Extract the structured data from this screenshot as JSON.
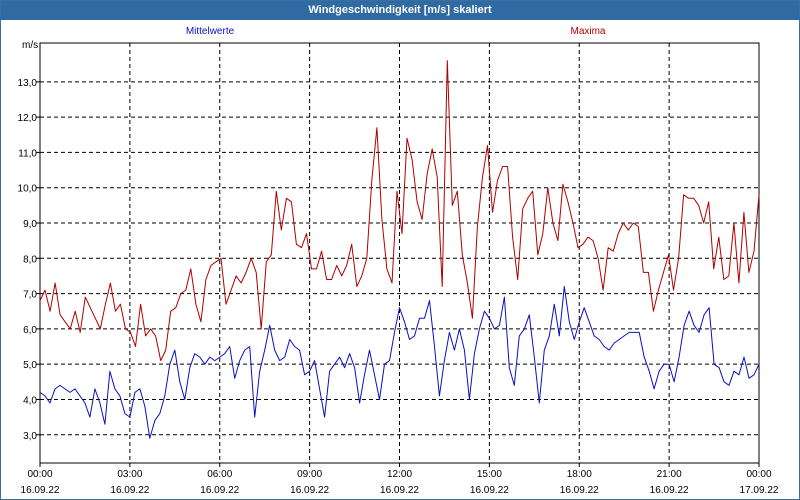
{
  "window": {
    "title": "Windgeschwindigkeit [m/s] skaliert"
  },
  "chart_data": {
    "type": "line",
    "title": "Windgeschwindigkeit [m/s] skaliert",
    "ylabel": "m/s",
    "ylim": [
      2.2,
      14.1
    ],
    "y_ticks": [
      "3,0",
      "4,0",
      "5,0",
      "6,0",
      "7,0",
      "8,0",
      "9,0",
      "10,0",
      "11,0",
      "12,0",
      "13,0"
    ],
    "y_tick_values": [
      3,
      4,
      5,
      6,
      7,
      8,
      9,
      10,
      11,
      12,
      13
    ],
    "xlim_hours": [
      0,
      24
    ],
    "x_ticks": [
      {
        "time": "00:00",
        "date": "16.09.22"
      },
      {
        "time": "03:00",
        "date": "16.09.22"
      },
      {
        "time": "06:00",
        "date": "16.09.22"
      },
      {
        "time": "09:00",
        "date": "16.09.22"
      },
      {
        "time": "12:00",
        "date": "16.09.22"
      },
      {
        "time": "15:00",
        "date": "16.09.22"
      },
      {
        "time": "18:00",
        "date": "16.09.22"
      },
      {
        "time": "21:00",
        "date": "16.09.22"
      },
      {
        "time": "00:00",
        "date": "17.09.22"
      }
    ],
    "grid": true,
    "colors": {
      "mean": "#0a10c0",
      "max": "#b00000"
    },
    "series": [
      {
        "name": "Mittelwerte",
        "color": "#0a10c0",
        "values": [
          4.2,
          4.1,
          3.9,
          4.3,
          4.4,
          4.3,
          4.2,
          4.3,
          4.1,
          3.9,
          3.5,
          4.3,
          3.9,
          3.3,
          4.8,
          4.3,
          4.1,
          3.6,
          3.5,
          4.2,
          4.3,
          3.8,
          2.9,
          3.4,
          3.6,
          4.1,
          5.0,
          5.4,
          4.5,
          4.0,
          4.9,
          5.3,
          5.2,
          5.0,
          5.2,
          5.1,
          5.2,
          5.3,
          5.5,
          4.6,
          5.1,
          5.4,
          5.5,
          3.5,
          4.8,
          5.4,
          6.1,
          5.4,
          5.1,
          5.2,
          5.7,
          5.5,
          5.4,
          4.7,
          4.8,
          5.1,
          4.3,
          3.5,
          4.8,
          5.0,
          5.2,
          4.9,
          5.3,
          4.9,
          3.9,
          4.7,
          5.4,
          4.7,
          4.0,
          5.0,
          5.1,
          5.9,
          6.6,
          6.2,
          5.7,
          5.8,
          6.3,
          6.3,
          6.8,
          5.5,
          4.1,
          5.1,
          5.9,
          5.4,
          6.0,
          5.4,
          4.0,
          5.3,
          6.0,
          6.5,
          6.3,
          6.0,
          6.1,
          6.9,
          4.9,
          4.4,
          5.8,
          6.0,
          6.4,
          5.2,
          3.9,
          5.4,
          5.8,
          6.7,
          5.8,
          7.2,
          6.2,
          5.7,
          6.2,
          6.6,
          6.2,
          5.8,
          5.7,
          5.5,
          5.4,
          5.6,
          5.7,
          5.8,
          5.9,
          5.9,
          5.9,
          5.2,
          4.8,
          4.3,
          4.8,
          5.0,
          5.0,
          4.5,
          5.2,
          6.1,
          6.5,
          6.1,
          5.9,
          6.4,
          6.6,
          5.0,
          4.9,
          4.5,
          4.4,
          4.8,
          4.7,
          5.2,
          4.6,
          4.7,
          5.0
        ]
      },
      {
        "name": "Maxima",
        "color": "#b00000",
        "values": [
          6.8,
          7.1,
          6.5,
          7.3,
          6.4,
          6.2,
          6.0,
          6.5,
          5.9,
          6.9,
          6.6,
          6.3,
          6.0,
          6.7,
          7.3,
          6.5,
          6.7,
          6.0,
          5.9,
          5.5,
          6.7,
          5.8,
          6.0,
          5.8,
          5.1,
          5.4,
          6.5,
          6.6,
          7.0,
          7.1,
          7.7,
          6.7,
          6.2,
          7.4,
          7.8,
          7.9,
          8.0,
          6.7,
          7.1,
          7.5,
          7.3,
          7.6,
          8.0,
          7.6,
          6.0,
          7.9,
          8.1,
          9.9,
          8.8,
          9.7,
          9.6,
          8.4,
          8.3,
          8.7,
          7.7,
          7.7,
          8.2,
          7.4,
          7.4,
          7.8,
          7.5,
          7.8,
          8.4,
          7.2,
          7.5,
          8.0,
          10.2,
          11.7,
          9.1,
          7.7,
          7.3,
          9.9,
          8.7,
          11.4,
          10.8,
          9.6,
          9.1,
          10.4,
          11.1,
          10.3,
          7.2,
          13.6,
          9.5,
          9.9,
          8.1,
          7.3,
          6.3,
          8.9,
          10.3,
          11.2,
          9.3,
          10.2,
          10.6,
          10.6,
          8.6,
          7.4,
          9.4,
          9.7,
          9.9,
          8.1,
          8.7,
          10.0,
          9.0,
          8.5,
          10.1,
          9.6,
          9.0,
          8.3,
          8.4,
          8.6,
          8.5,
          8.0,
          7.1,
          8.3,
          8.2,
          8.7,
          9.0,
          8.8,
          9.0,
          8.9,
          7.6,
          7.6,
          6.5,
          7.1,
          7.6,
          8.1,
          7.1,
          8.0,
          9.8,
          9.7,
          9.7,
          9.5,
          9.0,
          9.6,
          7.7,
          8.6,
          7.4,
          7.5,
          9.0,
          7.3,
          9.3,
          7.6,
          8.2,
          9.8
        ]
      }
    ]
  }
}
